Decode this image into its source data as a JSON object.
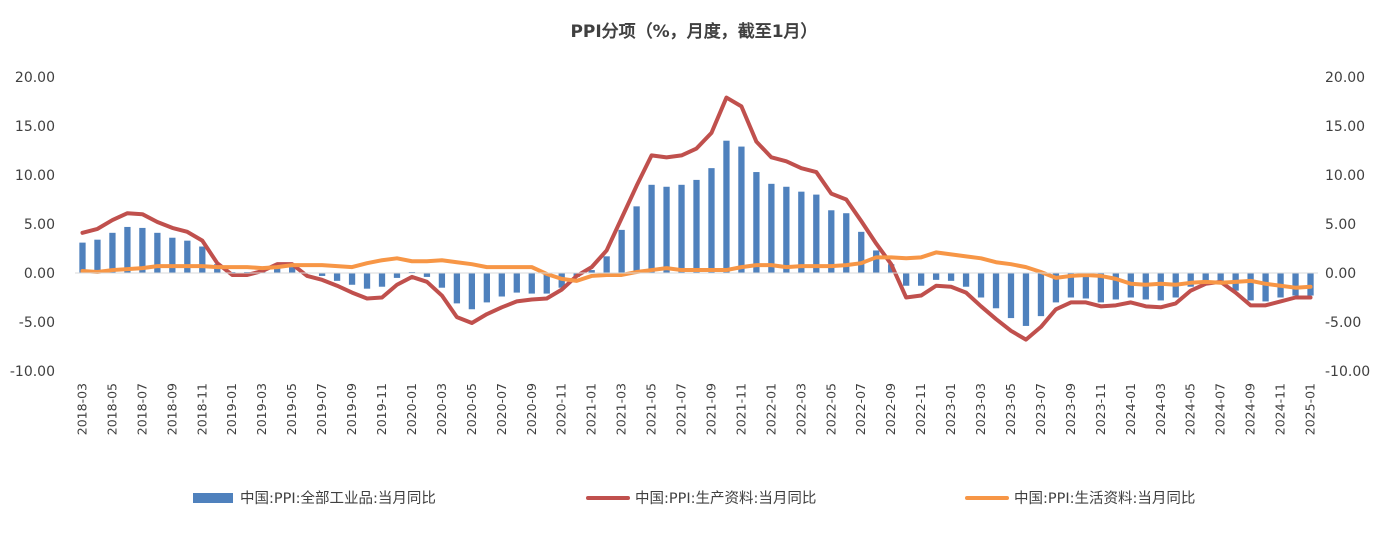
{
  "chart_data": {
    "type": "bar",
    "title": "PPI分项（%，月度，截至1月）",
    "xlabel": "",
    "ylabel": "",
    "ylim": [
      -10,
      20
    ],
    "yticks": [
      20,
      15,
      10,
      5,
      0,
      -5,
      -10
    ],
    "ytick_labels": [
      "20.00",
      "15.00",
      "10.00",
      "5.00",
      "0.00",
      "-5.00",
      "-10.00"
    ],
    "right_axis": true,
    "grid": false,
    "legend_position": "bottom",
    "x_labels_visible": [
      "2018-03",
      "2018-05",
      "2018-07",
      "2018-09",
      "2018-11",
      "2019-01",
      "2019-03",
      "2019-05",
      "2019-07",
      "2019-09",
      "2019-11",
      "2020-01",
      "2020-03",
      "2020-05",
      "2020-07",
      "2020-09",
      "2020-11",
      "2021-01",
      "2021-03",
      "2021-05",
      "2021-07",
      "2021-09",
      "2021-11",
      "2022-01",
      "2022-03",
      "2022-05",
      "2022-07",
      "2022-09",
      "2022-11",
      "2023-01",
      "2023-03",
      "2023-05",
      "2023-07",
      "2023-09",
      "2023-11",
      "2024-01",
      "2024-03",
      "2024-05",
      "2024-07",
      "2024-09",
      "2024-11",
      "2025-01"
    ],
    "categories": [
      "2018-03",
      "2018-04",
      "2018-05",
      "2018-06",
      "2018-07",
      "2018-08",
      "2018-09",
      "2018-10",
      "2018-11",
      "2018-12",
      "2019-01",
      "2019-02",
      "2019-03",
      "2019-04",
      "2019-05",
      "2019-06",
      "2019-07",
      "2019-08",
      "2019-09",
      "2019-10",
      "2019-11",
      "2019-12",
      "2020-01",
      "2020-02",
      "2020-03",
      "2020-04",
      "2020-05",
      "2020-06",
      "2020-07",
      "2020-08",
      "2020-09",
      "2020-10",
      "2020-11",
      "2020-12",
      "2021-01",
      "2021-02",
      "2021-03",
      "2021-04",
      "2021-05",
      "2021-06",
      "2021-07",
      "2021-08",
      "2021-09",
      "2021-10",
      "2021-11",
      "2021-12",
      "2022-01",
      "2022-02",
      "2022-03",
      "2022-04",
      "2022-05",
      "2022-06",
      "2022-07",
      "2022-08",
      "2022-09",
      "2022-10",
      "2022-11",
      "2022-12",
      "2023-01",
      "2023-02",
      "2023-03",
      "2023-04",
      "2023-05",
      "2023-06",
      "2023-07",
      "2023-08",
      "2023-09",
      "2023-10",
      "2023-11",
      "2023-12",
      "2024-01",
      "2024-02",
      "2024-03",
      "2024-04",
      "2024-05",
      "2024-06",
      "2024-07",
      "2024-08",
      "2024-09",
      "2024-10",
      "2024-11",
      "2024-12",
      "2025-01"
    ],
    "series": [
      {
        "name": "中国:PPI:全部工业品:当月同比",
        "type": "bar",
        "color": "#4F81BD",
        "values": [
          3.1,
          3.4,
          4.1,
          4.7,
          4.6,
          4.1,
          3.6,
          3.3,
          2.7,
          0.9,
          0.1,
          0.1,
          0.4,
          0.9,
          0.6,
          0.0,
          -0.3,
          -0.8,
          -1.2,
          -1.6,
          -1.4,
          -0.5,
          0.1,
          -0.4,
          -1.5,
          -3.1,
          -3.7,
          -3.0,
          -2.4,
          -2.0,
          -2.1,
          -2.1,
          -1.5,
          -0.4,
          0.3,
          1.7,
          4.4,
          6.8,
          9.0,
          8.8,
          9.0,
          9.5,
          10.7,
          13.5,
          12.9,
          10.3,
          9.1,
          8.8,
          8.3,
          8.0,
          6.4,
          6.1,
          4.2,
          2.3,
          0.9,
          -1.3,
          -1.3,
          -0.7,
          -0.8,
          -1.4,
          -2.5,
          -3.6,
          -4.6,
          -5.4,
          -4.4,
          -3.0,
          -2.5,
          -2.6,
          -3.0,
          -2.7,
          -2.5,
          -2.7,
          -2.8,
          -2.5,
          -1.4,
          -0.8,
          -0.8,
          -1.8,
          -2.8,
          -2.9,
          -2.5,
          -2.3,
          -2.3
        ]
      },
      {
        "name": "中国:PPI:生产资料:当月同比",
        "type": "line",
        "color": "#C0504D",
        "values": [
          4.1,
          4.5,
          5.4,
          6.1,
          6.0,
          5.2,
          4.6,
          4.2,
          3.3,
          1.0,
          -0.2,
          -0.2,
          0.2,
          0.9,
          0.9,
          -0.3,
          -0.7,
          -1.3,
          -2.0,
          -2.6,
          -2.5,
          -1.2,
          -0.4,
          -0.9,
          -2.3,
          -4.5,
          -5.1,
          -4.2,
          -3.5,
          -2.9,
          -2.7,
          -2.6,
          -1.7,
          -0.3,
          0.6,
          2.3,
          5.6,
          8.9,
          12.0,
          11.8,
          12.0,
          12.7,
          14.3,
          17.9,
          17.0,
          13.4,
          11.8,
          11.4,
          10.7,
          10.3,
          8.1,
          7.5,
          5.3,
          3.0,
          0.9,
          -2.5,
          -2.3,
          -1.3,
          -1.4,
          -2.0,
          -3.4,
          -4.7,
          -5.9,
          -6.8,
          -5.5,
          -3.7,
          -3.0,
          -3.0,
          -3.4,
          -3.3,
          -3.0,
          -3.4,
          -3.5,
          -3.1,
          -1.8,
          -1.1,
          -0.9,
          -2.0,
          -3.3,
          -3.3,
          -2.9,
          -2.5,
          -2.5
        ]
      },
      {
        "name": "中国:PPI:生活资料:当月同比",
        "type": "line",
        "color": "#F79646",
        "values": [
          0.2,
          0.1,
          0.3,
          0.4,
          0.5,
          0.7,
          0.7,
          0.7,
          0.7,
          0.6,
          0.6,
          0.6,
          0.5,
          0.6,
          0.8,
          0.8,
          0.8,
          0.7,
          0.6,
          1.0,
          1.3,
          1.5,
          1.2,
          1.2,
          1.3,
          1.1,
          0.9,
          0.6,
          0.6,
          0.6,
          0.6,
          -0.1,
          -0.6,
          -0.8,
          -0.3,
          -0.2,
          -0.2,
          0.1,
          0.3,
          0.5,
          0.3,
          0.3,
          0.3,
          0.3,
          0.6,
          0.8,
          0.8,
          0.6,
          0.7,
          0.7,
          0.7,
          0.8,
          1.0,
          1.6,
          1.6,
          1.5,
          1.6,
          2.1,
          1.9,
          1.7,
          1.5,
          1.1,
          0.9,
          0.6,
          0.1,
          -0.5,
          -0.3,
          -0.2,
          -0.3,
          -0.6,
          -1.1,
          -1.2,
          -1.1,
          -1.2,
          -1.0,
          -0.9,
          -1.0,
          -0.9,
          -0.8,
          -1.1,
          -1.3,
          -1.5,
          -1.4
        ]
      }
    ]
  }
}
